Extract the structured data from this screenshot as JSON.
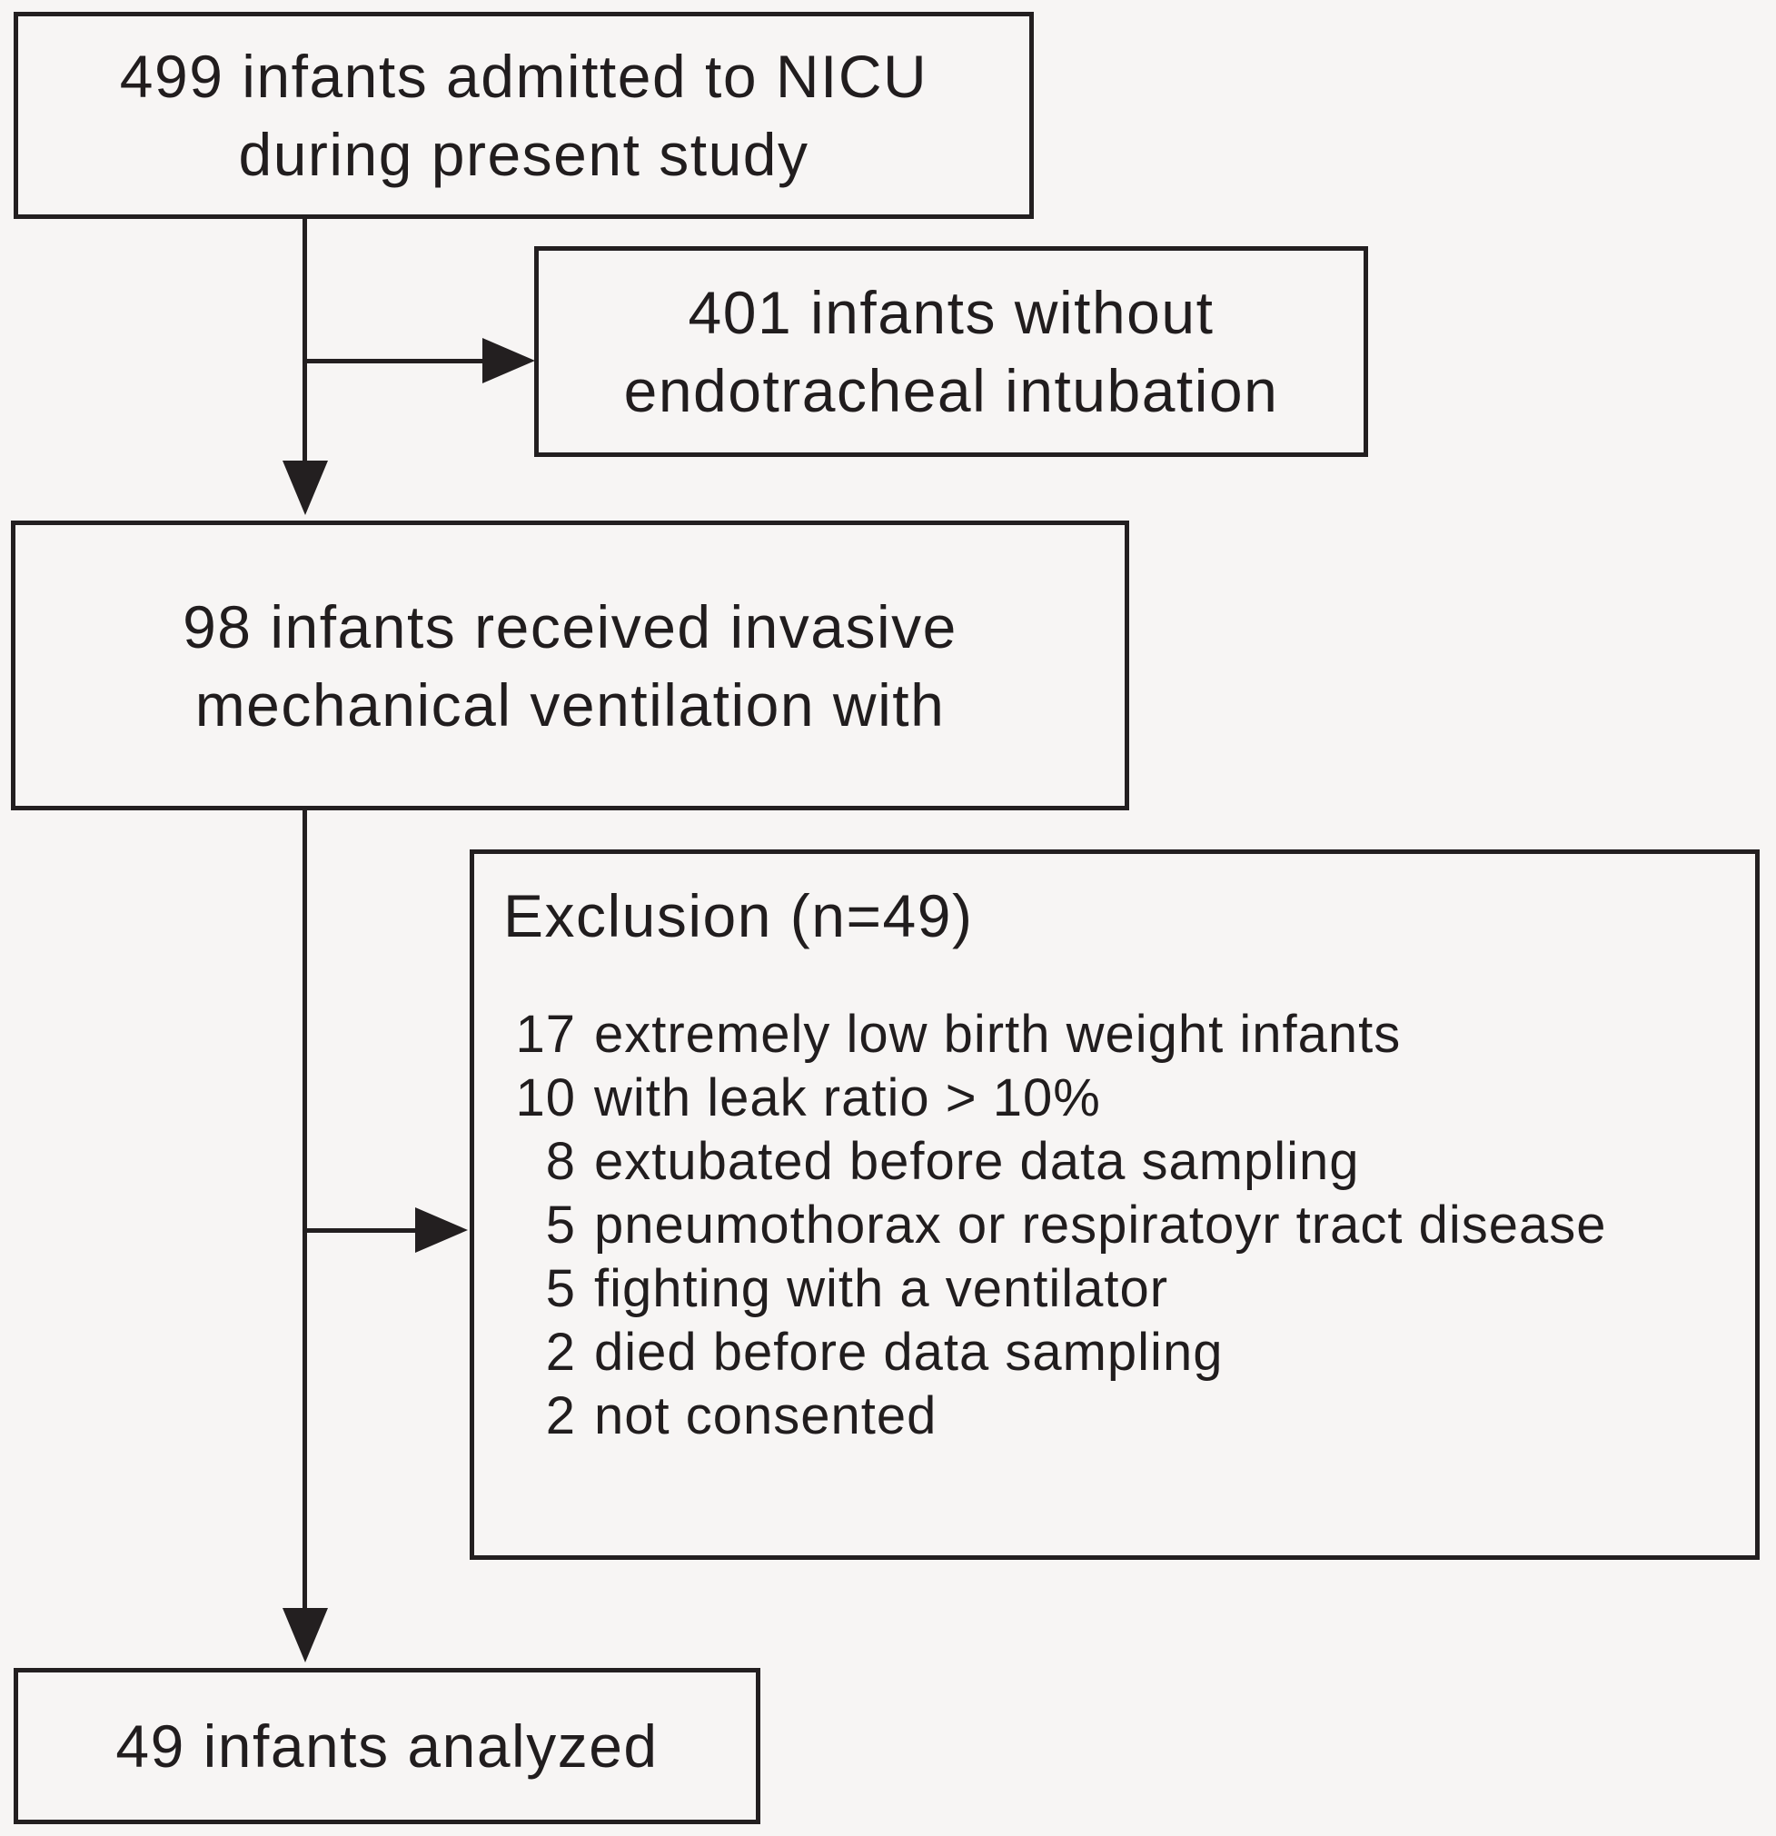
{
  "figure": {
    "colors": {
      "line": "#231f20",
      "text": "#211d1e",
      "background": "#f7f5f4"
    },
    "boxes": {
      "admitted": {
        "line1": "499 infants admitted to NICU",
        "line2": "during present study"
      },
      "without_intubation": {
        "line1": "401 infants without",
        "line2": "endotracheal intubation"
      },
      "ventilated": {
        "line1": "98 infants received invasive",
        "line2": "mechanical ventilation with"
      },
      "exclusion": {
        "title": "Exclusion (n=49)",
        "items": [
          {
            "count": "17",
            "reason": "extremely low birth weight infants"
          },
          {
            "count": "10",
            "reason": "with leak ratio > 10%"
          },
          {
            "count": "8",
            "reason": "extubated before data sampling"
          },
          {
            "count": "5",
            "reason": "pneumothorax or respiratoyr tract disease"
          },
          {
            "count": "5",
            "reason": "fighting with a ventilator"
          },
          {
            "count": "2",
            "reason": "died before data sampling"
          },
          {
            "count": "2",
            "reason": "not consented"
          }
        ]
      },
      "analyzed": {
        "line1": "49 infants analyzed"
      }
    }
  }
}
